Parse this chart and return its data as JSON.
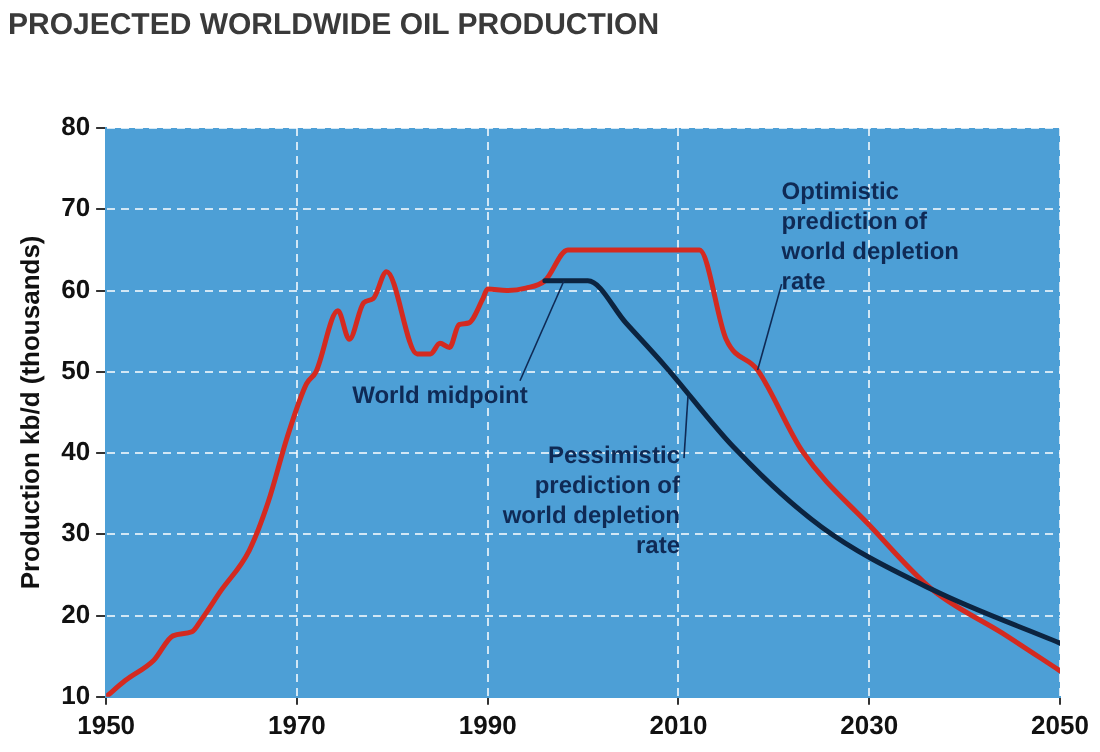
{
  "chart_data": {
    "type": "line",
    "title": "PROJECTED WORLDWIDE OIL PRODUCTION",
    "ylabel": "Production kb/d (thousands)",
    "xlim": [
      1950,
      2050
    ],
    "xticks": [
      1950,
      1970,
      1990,
      2010,
      2030,
      2050
    ],
    "ylim": [
      10,
      80
    ],
    "yticks": [
      10,
      20,
      30,
      40,
      50,
      60,
      70,
      80
    ],
    "grid": true,
    "legend": false,
    "marker": "none",
    "series": [
      {
        "color": "#0c2440",
        "x": [
          1996,
          2000.5,
          2004.5,
          2008.6,
          2015.8,
          2025,
          2036.6,
          2050
        ],
        "values": [
          61.2,
          61.2,
          56,
          50.7,
          40.7,
          30.9,
          23.2,
          16.6
        ]
      },
      {
        "color": "#d42a20",
        "x": [
          1950,
          1952,
          1955,
          1957,
          1959,
          1960,
          1962,
          1965,
          1967,
          1969,
          1971,
          1972,
          1974.3,
          1975.5,
          1977,
          1978,
          1979.4,
          1982.6,
          1984,
          1985,
          1986,
          1987,
          1988,
          1989.5,
          1990,
          1992,
          1994,
          1996,
          1998.4,
          2012.2,
          2015,
          2018.3,
          2023,
          2030.2,
          2036.6,
          2044,
          2050
        ],
        "values": [
          10,
          12,
          14.5,
          17.5,
          18,
          19.5,
          23,
          28,
          34,
          42,
          48.5,
          50,
          57.5,
          54,
          58.5,
          59,
          62.3,
          52.2,
          52.2,
          53.5,
          53,
          55.8,
          56,
          59,
          60.2,
          60,
          60.3,
          61.2,
          65,
          65,
          54,
          50.2,
          40.2,
          30.9,
          23.2,
          17.8,
          13.2
        ]
      }
    ],
    "annotations": [
      {
        "text": "World midpoint",
        "x": 1998,
        "y": 61.2
      },
      {
        "text": "Optimistic prediction of world depletion rate",
        "x": 2018.3,
        "y": 50.2
      },
      {
        "text": "Pessimistic prediction of world depletion rate",
        "x": 2011,
        "y": 47
      }
    ]
  }
}
